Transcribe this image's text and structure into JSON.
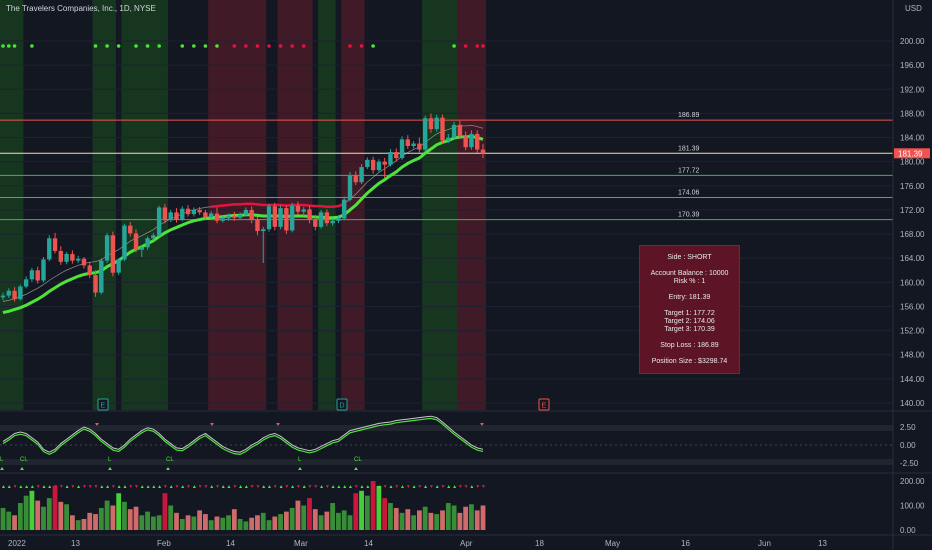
{
  "header": {
    "symbol_title": "The Travelers Companies, Inc., 1D, NYSE",
    "currency": "USD"
  },
  "colors": {
    "background": "#131722",
    "up": "#26a69a",
    "down": "#ef5350",
    "bright_green": "#4ee33b",
    "crimson": "#e0163f",
    "band_green": "#1b5e20",
    "band_red": "#7b1f2f",
    "trade_box": "#5d1525"
  },
  "trade_info": {
    "side": "Side : SHORT",
    "account_balance": "Account Balance : 10000",
    "risk": "Risk % : 1",
    "entry": "Entry: 181.39",
    "target1": "Target 1: 177.72",
    "target2": "Target 2: 174.06",
    "target3": "Target 3: 170.39",
    "stop_loss": "Stop Loss : 186.89",
    "position_size": "Position Size : $3298.74"
  },
  "chart_data": [
    {
      "type": "candlestick",
      "title": "The Travelers Companies, Inc., 1D, NYSE",
      "ylabel": "USD",
      "ylim": [
        138,
        204
      ],
      "y_ticks": [
        "200.00",
        "196.00",
        "192.00",
        "188.00",
        "184.00",
        "180.00",
        "176.00",
        "172.00",
        "168.00",
        "164.00",
        "160.00",
        "156.00",
        "152.00",
        "148.00",
        "144.00",
        "140.00"
      ],
      "x_ticks": [
        "2022",
        "13",
        "Feb",
        "14",
        "Mar",
        "14",
        "Apr",
        "18",
        "May",
        "16",
        "Jun",
        "13"
      ],
      "current_price_label": "181.39",
      "levels": [
        {
          "label": "186.89",
          "value": 186.89,
          "color": "#ef5350"
        },
        {
          "label": "181.39",
          "value": 181.39,
          "color": "#f5deb3"
        },
        {
          "label": "177.72",
          "value": 177.72,
          "color": "#4caf50"
        },
        {
          "label": "174.06",
          "value": 174.06,
          "color": "#4caf50"
        },
        {
          "label": "170.39",
          "value": 170.39,
          "color": "#4caf50"
        }
      ],
      "event_markers": [
        "E",
        "D",
        "E"
      ],
      "candles": [
        {
          "o": 157.5,
          "h": 158.3,
          "c": 157.8,
          "l": 157.0
        },
        {
          "o": 157.8,
          "h": 159.0,
          "c": 158.6,
          "l": 157.4
        },
        {
          "o": 158.6,
          "h": 159.2,
          "c": 157.2,
          "l": 156.8
        },
        {
          "o": 157.2,
          "h": 159.6,
          "c": 159.3,
          "l": 157.0
        },
        {
          "o": 159.3,
          "h": 161.0,
          "c": 160.5,
          "l": 159.0
        },
        {
          "o": 160.5,
          "h": 162.4,
          "c": 162.0,
          "l": 160.1
        },
        {
          "o": 162.0,
          "h": 162.6,
          "c": 160.3,
          "l": 159.8
        },
        {
          "o": 160.3,
          "h": 164.2,
          "c": 163.8,
          "l": 160.0
        },
        {
          "o": 163.8,
          "h": 167.8,
          "c": 167.3,
          "l": 163.5
        },
        {
          "o": 167.3,
          "h": 168.2,
          "c": 165.2,
          "l": 164.8
        },
        {
          "o": 165.2,
          "h": 166.0,
          "c": 163.4,
          "l": 162.9
        },
        {
          "o": 163.4,
          "h": 165.0,
          "c": 164.7,
          "l": 163.0
        },
        {
          "o": 164.7,
          "h": 165.3,
          "c": 163.6,
          "l": 163.1
        },
        {
          "o": 163.6,
          "h": 164.4,
          "c": 163.9,
          "l": 163.2
        },
        {
          "o": 163.9,
          "h": 164.2,
          "c": 162.8,
          "l": 162.3
        },
        {
          "o": 162.8,
          "h": 163.4,
          "c": 161.2,
          "l": 160.7
        },
        {
          "o": 161.2,
          "h": 162.0,
          "c": 158.3,
          "l": 157.6
        },
        {
          "o": 158.3,
          "h": 164.0,
          "c": 163.6,
          "l": 158.0
        },
        {
          "o": 163.6,
          "h": 168.2,
          "c": 167.8,
          "l": 163.2
        },
        {
          "o": 167.8,
          "h": 168.4,
          "c": 161.6,
          "l": 161.0
        },
        {
          "o": 161.6,
          "h": 164.0,
          "c": 163.8,
          "l": 161.2
        },
        {
          "o": 163.8,
          "h": 169.7,
          "c": 169.4,
          "l": 163.5
        },
        {
          "o": 169.4,
          "h": 170.0,
          "c": 168.1,
          "l": 167.6
        },
        {
          "o": 168.1,
          "h": 168.8,
          "c": 165.4,
          "l": 165.0
        },
        {
          "o": 165.4,
          "h": 166.2,
          "c": 165.8,
          "l": 164.2
        },
        {
          "o": 165.8,
          "h": 167.6,
          "c": 167.3,
          "l": 165.4
        },
        {
          "o": 167.3,
          "h": 168.2,
          "c": 167.8,
          "l": 166.9
        },
        {
          "o": 167.8,
          "h": 172.7,
          "c": 172.4,
          "l": 167.5
        },
        {
          "o": 172.4,
          "h": 173.0,
          "c": 170.3,
          "l": 169.8
        },
        {
          "o": 170.3,
          "h": 172.0,
          "c": 171.6,
          "l": 170.0
        },
        {
          "o": 171.6,
          "h": 172.3,
          "c": 170.4,
          "l": 169.9
        },
        {
          "o": 170.4,
          "h": 172.6,
          "c": 172.2,
          "l": 170.1
        },
        {
          "o": 172.2,
          "h": 172.8,
          "c": 171.3,
          "l": 170.9
        },
        {
          "o": 171.3,
          "h": 172.4,
          "c": 172.0,
          "l": 170.9
        },
        {
          "o": 172.0,
          "h": 172.5,
          "c": 171.6,
          "l": 171.2
        },
        {
          "o": 171.6,
          "h": 172.0,
          "c": 170.8,
          "l": 170.3
        },
        {
          "o": 170.8,
          "h": 171.8,
          "c": 171.4,
          "l": 170.5
        },
        {
          "o": 171.4,
          "h": 172.4,
          "c": 170.2,
          "l": 169.8
        },
        {
          "o": 170.2,
          "h": 171.0,
          "c": 170.6,
          "l": 169.9
        },
        {
          "o": 170.6,
          "h": 171.4,
          "c": 171.0,
          "l": 170.2
        },
        {
          "o": 171.0,
          "h": 171.7,
          "c": 170.7,
          "l": 170.2
        },
        {
          "o": 170.7,
          "h": 171.6,
          "c": 171.2,
          "l": 170.4
        },
        {
          "o": 171.2,
          "h": 172.4,
          "c": 172.0,
          "l": 170.9
        },
        {
          "o": 172.0,
          "h": 172.6,
          "c": 170.4,
          "l": 169.8
        },
        {
          "o": 170.4,
          "h": 170.9,
          "c": 168.5,
          "l": 167.8
        },
        {
          "o": 168.5,
          "h": 169.2,
          "c": 168.8,
          "l": 163.2
        },
        {
          "o": 168.8,
          "h": 173.0,
          "c": 172.6,
          "l": 168.4
        },
        {
          "o": 172.6,
          "h": 173.2,
          "c": 169.2,
          "l": 168.6
        },
        {
          "o": 169.2,
          "h": 172.8,
          "c": 172.3,
          "l": 168.8
        },
        {
          "o": 172.3,
          "h": 172.8,
          "c": 168.6,
          "l": 168.0
        },
        {
          "o": 168.6,
          "h": 173.2,
          "c": 172.7,
          "l": 168.3
        },
        {
          "o": 172.7,
          "h": 173.4,
          "c": 171.7,
          "l": 171.2
        },
        {
          "o": 171.7,
          "h": 172.5,
          "c": 172.1,
          "l": 171.0
        },
        {
          "o": 172.1,
          "h": 172.7,
          "c": 170.4,
          "l": 169.8
        },
        {
          "o": 170.4,
          "h": 171.2,
          "c": 169.2,
          "l": 168.6
        },
        {
          "o": 169.2,
          "h": 172.0,
          "c": 171.6,
          "l": 168.9
        },
        {
          "o": 171.6,
          "h": 172.1,
          "c": 169.8,
          "l": 169.3
        },
        {
          "o": 169.8,
          "h": 170.6,
          "c": 170.2,
          "l": 169.4
        },
        {
          "o": 170.2,
          "h": 171.0,
          "c": 170.6,
          "l": 169.8
        },
        {
          "o": 170.6,
          "h": 174.2,
          "c": 173.7,
          "l": 170.3
        },
        {
          "o": 173.7,
          "h": 178.3,
          "c": 177.8,
          "l": 173.4
        },
        {
          "o": 177.8,
          "h": 178.4,
          "c": 176.6,
          "l": 176.1
        },
        {
          "o": 176.6,
          "h": 179.6,
          "c": 179.1,
          "l": 176.3
        },
        {
          "o": 179.1,
          "h": 180.7,
          "c": 180.3,
          "l": 178.8
        },
        {
          "o": 180.3,
          "h": 180.8,
          "c": 178.6,
          "l": 178.0
        },
        {
          "o": 178.6,
          "h": 180.4,
          "c": 180.0,
          "l": 178.3
        },
        {
          "o": 180.0,
          "h": 180.6,
          "c": 179.5,
          "l": 177.3
        },
        {
          "o": 179.5,
          "h": 182.1,
          "c": 181.6,
          "l": 179.2
        },
        {
          "o": 181.6,
          "h": 182.2,
          "c": 180.6,
          "l": 180.1
        },
        {
          "o": 180.6,
          "h": 184.2,
          "c": 183.7,
          "l": 180.3
        },
        {
          "o": 183.7,
          "h": 184.4,
          "c": 182.6,
          "l": 182.1
        },
        {
          "o": 182.6,
          "h": 183.4,
          "c": 183.0,
          "l": 182.2
        },
        {
          "o": 183.0,
          "h": 184.0,
          "c": 182.0,
          "l": 181.5
        },
        {
          "o": 182.0,
          "h": 187.6,
          "c": 187.2,
          "l": 181.7
        },
        {
          "o": 187.2,
          "h": 188.0,
          "c": 185.4,
          "l": 184.8
        },
        {
          "o": 185.4,
          "h": 187.8,
          "c": 187.3,
          "l": 185.0
        },
        {
          "o": 187.3,
          "h": 187.8,
          "c": 183.5,
          "l": 183.0
        },
        {
          "o": 183.5,
          "h": 184.6,
          "c": 184.0,
          "l": 183.1
        },
        {
          "o": 184.0,
          "h": 186.6,
          "c": 186.1,
          "l": 183.7
        },
        {
          "o": 186.1,
          "h": 186.8,
          "c": 184.2,
          "l": 183.7
        },
        {
          "o": 184.2,
          "h": 185.0,
          "c": 182.4,
          "l": 181.9
        },
        {
          "o": 182.4,
          "h": 185.2,
          "c": 184.6,
          "l": 182.0
        },
        {
          "o": 184.6,
          "h": 185.2,
          "c": 182.0,
          "l": 181.5
        },
        {
          "o": 182.0,
          "h": 182.9,
          "c": 181.39,
          "l": 180.6
        }
      ],
      "moving_average": [
        155.0,
        155.2,
        155.5,
        155.8,
        156.2,
        156.7,
        157.2,
        157.8,
        158.5,
        159.1,
        159.7,
        160.2,
        160.6,
        161.0,
        161.3,
        161.5,
        161.6,
        161.9,
        162.6,
        163.1,
        163.6,
        164.3,
        165.0,
        165.5,
        165.9,
        166.4,
        166.9,
        167.6,
        168.2,
        168.7,
        169.1,
        169.5,
        169.9,
        170.2,
        170.4,
        170.6,
        170.7,
        170.8,
        170.9,
        171.0,
        171.1,
        171.1,
        171.2,
        171.2,
        171.1,
        171.0,
        171.0,
        171.0,
        171.0,
        170.9,
        171.0,
        171.0,
        171.0,
        170.9,
        170.8,
        170.8,
        170.7,
        170.7,
        170.8,
        171.2,
        172.0,
        172.8,
        173.8,
        174.8,
        175.6,
        176.4,
        177.0,
        177.7,
        178.3,
        179.1,
        179.7,
        180.2,
        180.6,
        181.4,
        182.1,
        182.8,
        183.2,
        183.5,
        183.9,
        184.1,
        184.1,
        184.2,
        184.0,
        183.7
      ]
    },
    {
      "type": "line",
      "title": "",
      "y_ticks": [
        "2.50",
        "0.00",
        "-2.50"
      ],
      "annotations": [
        "L",
        "CL",
        "L",
        "CL",
        "L",
        "CL",
        "L",
        "CL"
      ]
    },
    {
      "type": "bar",
      "title": "",
      "y_ticks": [
        "200.00",
        "100.00",
        "0.00"
      ],
      "values": [
        90,
        75,
        60,
        110,
        140,
        160,
        120,
        95,
        130,
        180,
        115,
        105,
        60,
        40,
        45,
        70,
        65,
        90,
        120,
        100,
        150,
        115,
        85,
        95,
        60,
        75,
        55,
        60,
        150,
        100,
        70,
        45,
        60,
        55,
        80,
        65,
        40,
        55,
        50,
        60,
        85,
        45,
        35,
        50,
        60,
        70,
        40,
        55,
        65,
        75,
        90,
        120,
        100,
        130,
        85,
        60,
        75,
        110,
        70,
        80,
        60,
        150,
        160,
        140,
        200,
        180,
        130,
        110,
        90,
        70,
        85,
        60,
        80,
        95,
        70,
        65,
        80,
        110,
        100,
        70,
        95,
        105,
        80,
        100
      ]
    }
  ]
}
